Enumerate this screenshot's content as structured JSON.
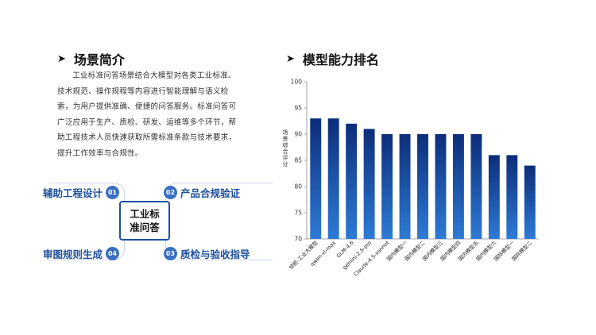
{
  "left": {
    "heading_arrow": "➤",
    "heading": "场景简介",
    "description": "工业标准问答场景结合大模型对各类工业标准、技术规范、操作规程等内容进行智能理解与语义检索，为用户提供准确、便捷的问答服务。标准问答可广泛应用于生产、质检、研发、运维等多个环节，帮助工程技术人员快速获取所需标准条款与技术要求，提升工作效率与合规性。",
    "hub_label": "工业标准问答",
    "features": [
      {
        "num": "01",
        "label": "辅助工程设计"
      },
      {
        "num": "02",
        "label": "产品合规验证"
      },
      {
        "num": "03",
        "label": "质检与验收指导"
      },
      {
        "num": "04",
        "label": "审图规则生成"
      }
    ]
  },
  "right": {
    "heading_arrow": "➤",
    "heading": "模型能力排名"
  },
  "colors": {
    "bar_top": "#2e7bd6",
    "bar_bottom": "#0c2d7a",
    "accent": "#1d4f9c",
    "badge": "#3a6fc1"
  },
  "chart_data": {
    "type": "bar",
    "categories": [
      "领航-工业大模型",
      "qwen-vl-max",
      "GLM-4.6",
      "gemini-2.5-pro",
      "Claude-4.5-sonnet",
      "国内模型一",
      "国内模型二",
      "国内模型三",
      "国内模型四",
      "国内模型五",
      "国内模型六",
      "国际模型一",
      "国际模型二"
    ],
    "values": [
      93,
      93,
      92,
      91,
      90,
      90,
      90,
      90,
      90,
      90,
      86,
      86,
      84
    ],
    "ylabel": "场景综合评分",
    "ylim": [
      70,
      100
    ],
    "yticks": [
      70,
      75,
      80,
      85,
      90,
      95,
      100
    ],
    "grid": false
  }
}
